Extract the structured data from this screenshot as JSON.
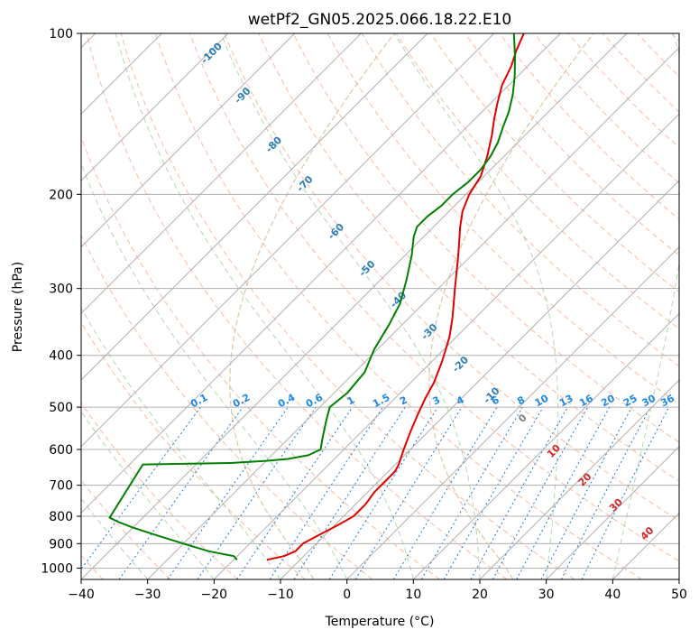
{
  "chart_data": {
    "type": "line",
    "title": "wetPf2_GN05.2025.066.18.22.E10",
    "xlabel": "Temperature (°C)",
    "ylabel": "Pressure (hPa)",
    "xlim": [
      -40,
      50
    ],
    "ylim": [
      1050,
      100
    ],
    "yscale": "log",
    "x_ticks": [
      -40,
      -30,
      -20,
      -10,
      0,
      10,
      20,
      30,
      40,
      50
    ],
    "x_tick_labels": [
      "−40",
      "−30",
      "−20",
      "−10",
      "0",
      "10",
      "20",
      "30",
      "40",
      "50"
    ],
    "y_ticks": [
      100,
      200,
      300,
      400,
      500,
      600,
      700,
      800,
      900,
      1000
    ],
    "y_tick_labels": [
      "100",
      "200",
      "300",
      "400",
      "500",
      "600",
      "700",
      "800",
      "900",
      "1000"
    ],
    "grid": true,
    "background_lines": {
      "isotherms_skewed": true,
      "dry_adiabats_theta_c": [
        -90,
        -80,
        -70,
        -60,
        -50,
        -40,
        -30,
        -20,
        -10,
        0,
        10,
        20,
        30,
        40,
        50,
        60,
        70,
        80,
        90,
        100,
        110,
        120,
        130,
        140,
        150,
        160,
        170,
        180,
        190,
        200
      ],
      "moist_adiabats_c": [
        -30,
        -20,
        -10,
        0,
        10,
        20,
        30,
        40
      ],
      "mixing_ratio_gkg": [
        0.1,
        0.2,
        0.4,
        0.6,
        1,
        1.5,
        2,
        3,
        4,
        6,
        8,
        10,
        13,
        16,
        20,
        25,
        30,
        36
      ],
      "isohume_labels": [
        {
          "text": "-100",
          "p": 110
        },
        {
          "text": "-90",
          "p": 132
        },
        {
          "text": "-80",
          "p": 163
        },
        {
          "text": "-70",
          "p": 193
        },
        {
          "text": "-60",
          "p": 237
        },
        {
          "text": "-50",
          "p": 278
        },
        {
          "text": "-40",
          "p": 318
        },
        {
          "text": "-30",
          "p": 365
        },
        {
          "text": "-20",
          "p": 420
        },
        {
          "text": "-10",
          "p": 480
        },
        {
          "text": "0",
          "p": 530
        },
        {
          "text": "10",
          "p": 610
        },
        {
          "text": "20",
          "p": 690
        },
        {
          "text": "30",
          "p": 770
        },
        {
          "text": "40",
          "p": 870
        }
      ],
      "mixing_ratio_labels": [
        "0.1",
        "0.2",
        "0.4",
        "0.6",
        "1",
        "1.5",
        "2",
        "3",
        "4",
        "6",
        "8",
        "10",
        "13",
        "16",
        "20",
        "25",
        "30",
        "36"
      ]
    },
    "series": [
      {
        "color": "#e00000",
        "points": [
          {
            "p": 965,
            "t": -15.0
          },
          {
            "p": 950,
            "t": -13.0
          },
          {
            "p": 930,
            "t": -12.0
          },
          {
            "p": 900,
            "t": -12.0
          },
          {
            "p": 870,
            "t": -11.0
          },
          {
            "p": 830,
            "t": -9.5
          },
          {
            "p": 800,
            "t": -8.5
          },
          {
            "p": 760,
            "t": -8.5
          },
          {
            "p": 720,
            "t": -9.0
          },
          {
            "p": 690,
            "t": -9.0
          },
          {
            "p": 660,
            "t": -9.0
          },
          {
            "p": 640,
            "t": -9.5
          },
          {
            "p": 600,
            "t": -11.0
          },
          {
            "p": 560,
            "t": -12.5
          },
          {
            "p": 520,
            "t": -14.0
          },
          {
            "p": 480,
            "t": -15.5
          },
          {
            "p": 450,
            "t": -16.5
          },
          {
            "p": 410,
            "t": -18.5
          },
          {
            "p": 370,
            "t": -21.0
          },
          {
            "p": 340,
            "t": -23.5
          },
          {
            "p": 300,
            "t": -27.5
          },
          {
            "p": 260,
            "t": -32.0
          },
          {
            "p": 230,
            "t": -36.0
          },
          {
            "p": 215,
            "t": -38.0
          },
          {
            "p": 200,
            "t": -39.5
          },
          {
            "p": 185,
            "t": -40.5
          },
          {
            "p": 170,
            "t": -42.5
          },
          {
            "p": 155,
            "t": -45.0
          },
          {
            "p": 145,
            "t": -47.0
          },
          {
            "p": 135,
            "t": -49.0
          },
          {
            "p": 125,
            "t": -51.0
          },
          {
            "p": 115,
            "t": -52.5
          },
          {
            "p": 108,
            "t": -54.0
          },
          {
            "p": 100,
            "t": -55.5
          }
        ]
      },
      {
        "color": "#008000",
        "points": [
          {
            "p": 965,
            "t": -19.5
          },
          {
            "p": 950,
            "t": -20.5
          },
          {
            "p": 930,
            "t": -25.0
          },
          {
            "p": 900,
            "t": -30.0
          },
          {
            "p": 870,
            "t": -35.0
          },
          {
            "p": 840,
            "t": -40.0
          },
          {
            "p": 820,
            "t": -43.0
          },
          {
            "p": 805,
            "t": -45.0
          },
          {
            "p": 640,
            "t": -48.0
          },
          {
            "p": 636,
            "t": -35.0
          },
          {
            "p": 630,
            "t": -30.0
          },
          {
            "p": 625,
            "t": -27.0
          },
          {
            "p": 615,
            "t": -24.5
          },
          {
            "p": 600,
            "t": -23.5
          },
          {
            "p": 570,
            "t": -25.0
          },
          {
            "p": 530,
            "t": -27.0
          },
          {
            "p": 500,
            "t": -28.5
          },
          {
            "p": 470,
            "t": -28.0
          },
          {
            "p": 430,
            "t": -28.5
          },
          {
            "p": 390,
            "t": -30.5
          },
          {
            "p": 350,
            "t": -32.0
          },
          {
            "p": 320,
            "t": -33.5
          },
          {
            "p": 290,
            "t": -36.0
          },
          {
            "p": 260,
            "t": -39.0
          },
          {
            "p": 240,
            "t": -41.5
          },
          {
            "p": 230,
            "t": -42.5
          },
          {
            "p": 220,
            "t": -42.5
          },
          {
            "p": 210,
            "t": -42.0
          },
          {
            "p": 200,
            "t": -42.0
          },
          {
            "p": 190,
            "t": -41.5
          },
          {
            "p": 180,
            "t": -41.5
          },
          {
            "p": 170,
            "t": -42.0
          },
          {
            "p": 160,
            "t": -43.0
          },
          {
            "p": 150,
            "t": -44.5
          },
          {
            "p": 140,
            "t": -46.0
          },
          {
            "p": 130,
            "t": -48.0
          },
          {
            "p": 120,
            "t": -50.5
          },
          {
            "p": 110,
            "t": -53.5
          },
          {
            "p": 100,
            "t": -57.0
          }
        ]
      }
    ]
  }
}
